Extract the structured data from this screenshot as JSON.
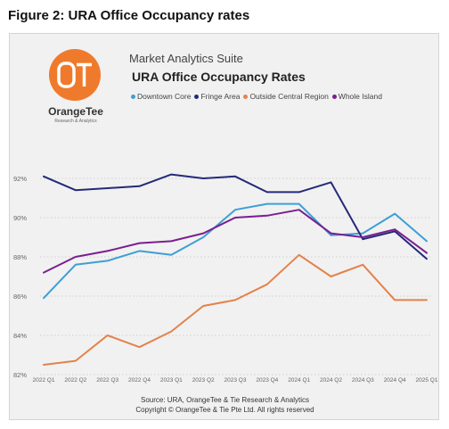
{
  "figure_title": "Figure 2: URA Office Occupancy rates",
  "logo": {
    "monogram": "OT",
    "name": "OrangeTee",
    "tagline": "Research & Analytics",
    "color": "#f07a2b"
  },
  "suite_name": "Market Analytics Suite",
  "source": {
    "line1": "Source: URA, OrangeTee & Tie Research & Analytics",
    "line2": "Copyright © OrangeTee & Tie Pte Ltd. All rights reserved"
  },
  "chart_data": {
    "type": "line",
    "title": "URA Office Occupancy Rates",
    "categories": [
      "2022 Q1",
      "2022 Q2",
      "2022 Q3",
      "2022 Q4",
      "2023 Q1",
      "2023 Q2",
      "2023 Q3",
      "2023 Q4",
      "2024 Q1",
      "2024 Q2",
      "2024 Q3",
      "2024 Q4",
      "2025 Q1"
    ],
    "ylim": [
      82,
      93
    ],
    "yticks": [
      82,
      84,
      86,
      88,
      90,
      92
    ],
    "ytick_labels": [
      "82%",
      "84%",
      "86%",
      "88%",
      "90%",
      "92%"
    ],
    "grid": "horizontal dotted",
    "legend_position": "top",
    "series": [
      {
        "name": "Downtown Core",
        "color": "#3d9fd6",
        "values": [
          85.9,
          87.6,
          87.8,
          88.3,
          88.1,
          89.0,
          90.4,
          90.7,
          90.7,
          89.1,
          89.2,
          90.2,
          88.8
        ]
      },
      {
        "name": "Fringe Area",
        "color": "#242a78",
        "values": [
          92.1,
          91.4,
          91.5,
          91.6,
          92.2,
          92.0,
          92.1,
          91.3,
          91.3,
          91.8,
          88.9,
          89.3,
          87.9
        ]
      },
      {
        "name": "Outside Central Region",
        "color": "#e3824a",
        "values": [
          82.5,
          82.7,
          84.0,
          83.4,
          84.2,
          85.5,
          85.8,
          86.6,
          88.1,
          87.0,
          87.6,
          85.8,
          85.8
        ]
      },
      {
        "name": "Whole Island",
        "color": "#7a1f8f",
        "values": [
          87.2,
          88.0,
          88.3,
          88.7,
          88.8,
          89.2,
          90.0,
          90.1,
          90.4,
          89.2,
          89.0,
          89.4,
          88.2
        ]
      }
    ]
  }
}
